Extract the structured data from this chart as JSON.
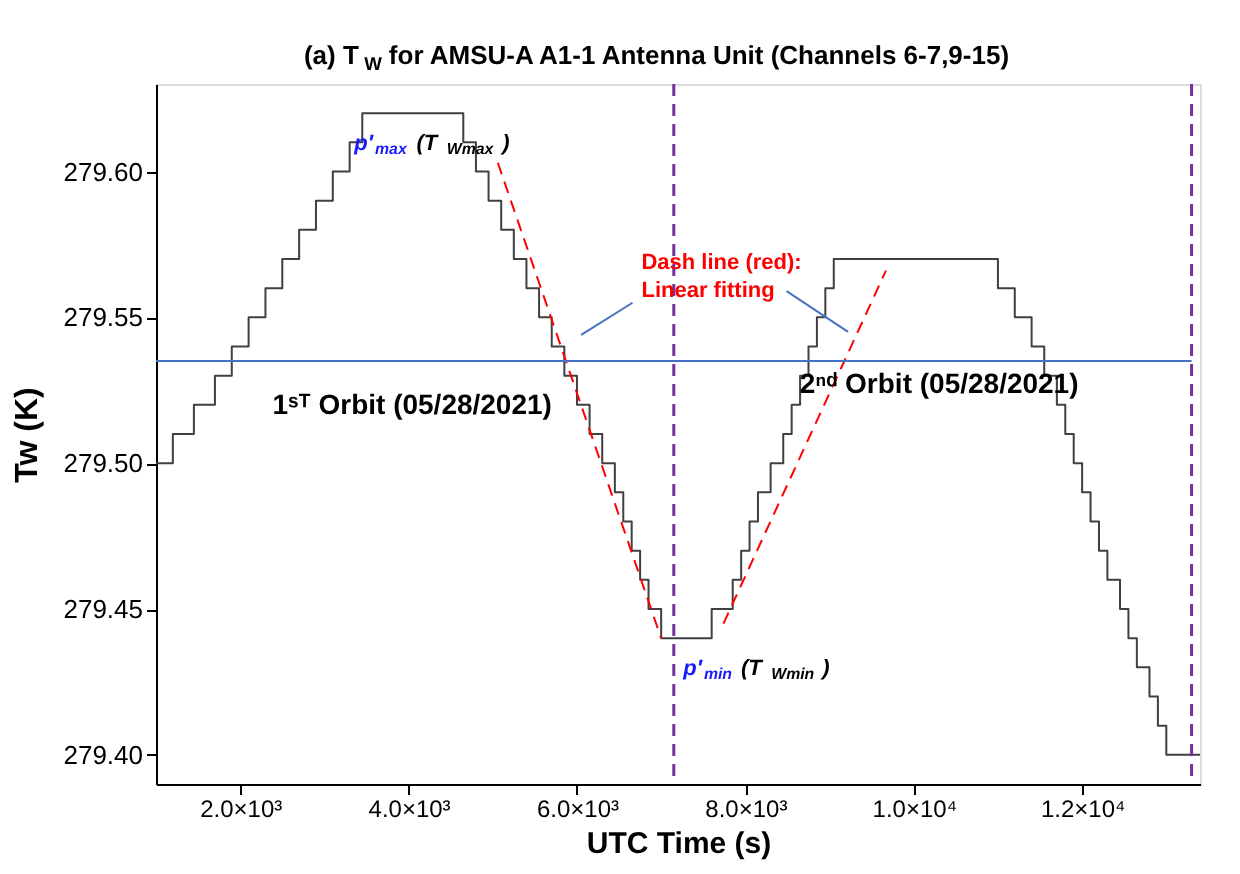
{
  "chart_data": {
    "type": "step",
    "title": "(a) T$_{W}$ for AMSU-A A1-1 Antenna Unit (Channels 6-7,9-15)",
    "xlabel": "UTC Time (s)",
    "ylabel": "Tw (K)",
    "xlim": [
      1000,
      13400
    ],
    "ylim": [
      279.39,
      279.63
    ],
    "xticks": [
      {
        "value": 2000,
        "label": "2.0×10³"
      },
      {
        "value": 4000,
        "label": "4.0×10³"
      },
      {
        "value": 6000,
        "label": "6.0×10³"
      },
      {
        "value": 8000,
        "label": "8.0×10³"
      },
      {
        "value": 10000,
        "label": "1.0×10⁴"
      },
      {
        "value": 12000,
        "label": "1.2×10⁴"
      }
    ],
    "yticks": [
      {
        "value": 279.4,
        "label": "279.40"
      },
      {
        "value": 279.45,
        "label": "279.45"
      },
      {
        "value": 279.5,
        "label": "279.50"
      },
      {
        "value": 279.55,
        "label": "279.55"
      },
      {
        "value": 279.6,
        "label": "279.60"
      }
    ],
    "grid": false,
    "marker": "none",
    "series": [
      {
        "color": "#404040",
        "line_style": "solid",
        "x": [
          1000,
          1200,
          1450,
          1700,
          1900,
          2100,
          2300,
          2500,
          2700,
          2900,
          3100,
          3300,
          3450,
          4650,
          4800,
          4950,
          5100,
          5250,
          5400,
          5550,
          5700,
          5850,
          6000,
          6150,
          6300,
          6450,
          6550,
          6650,
          6750,
          6850,
          7000,
          7600,
          7850,
          7950,
          8050,
          8150,
          8300,
          8450,
          8550,
          8650,
          8750,
          8850,
          8950,
          9050,
          11000,
          11200,
          11400,
          11550,
          11700,
          11800,
          11900,
          12000,
          12100,
          12200,
          12300,
          12450,
          12550,
          12650,
          12800,
          12900,
          13000,
          13400
        ],
        "values": [
          279.5,
          279.51,
          279.52,
          279.53,
          279.54,
          279.55,
          279.56,
          279.57,
          279.58,
          279.59,
          279.6,
          279.61,
          279.62,
          279.61,
          279.6,
          279.59,
          279.58,
          279.57,
          279.56,
          279.55,
          279.54,
          279.53,
          279.52,
          279.51,
          279.5,
          279.49,
          279.48,
          279.47,
          279.46,
          279.45,
          279.44,
          279.45,
          279.46,
          279.47,
          279.48,
          279.49,
          279.5,
          279.51,
          279.52,
          279.53,
          279.54,
          279.55,
          279.56,
          279.57,
          279.56,
          279.55,
          279.54,
          279.53,
          279.52,
          279.51,
          279.5,
          279.49,
          279.48,
          279.47,
          279.46,
          279.45,
          279.44,
          279.43,
          279.42,
          279.41,
          279.4,
          279.4
        ]
      },
      {
        "type": "line",
        "color": "#ff0000",
        "line_style": "dashed",
        "x": [
          5060,
          7000
        ],
        "values": [
          279.603,
          279.44
        ]
      },
      {
        "type": "line",
        "color": "#ff0000",
        "line_style": "dashed",
        "x": [
          7740,
          9670
        ],
        "values": [
          279.445,
          279.566
        ]
      },
      {
        "type": "line",
        "color": "#4472c4",
        "line_style": "solid",
        "x": [
          1000,
          7150,
          13300
        ],
        "values": [
          279.535,
          279.535,
          279.535
        ]
      },
      {
        "type": "line",
        "color": "#4472c4",
        "line_style": "solid",
        "x": [
          6660,
          6050
        ],
        "values": [
          279.555,
          279.544
        ]
      },
      {
        "type": "line",
        "color": "#4472c4",
        "line_style": "solid",
        "x": [
          8490,
          9220
        ],
        "values": [
          279.559,
          279.545
        ]
      }
    ],
    "ref_lines": [
      {
        "axis": "x",
        "value": 7150,
        "color": "#7030a0",
        "line_style": "dashed"
      },
      {
        "axis": "x",
        "value": 13300,
        "color": "#7030a0",
        "line_style": "dashed"
      }
    ],
    "annotations": [
      "1ˢᵀ Orbit (05/28/2021)",
      "2ⁿᵈ Orbit (05/28/2021)",
      "Dash line (red):\nLinear fitting",
      "p′$_{max}$ (T$_{Wmax}$)",
      "p′$_{min}$ (T$_{Wmin}$)"
    ]
  }
}
